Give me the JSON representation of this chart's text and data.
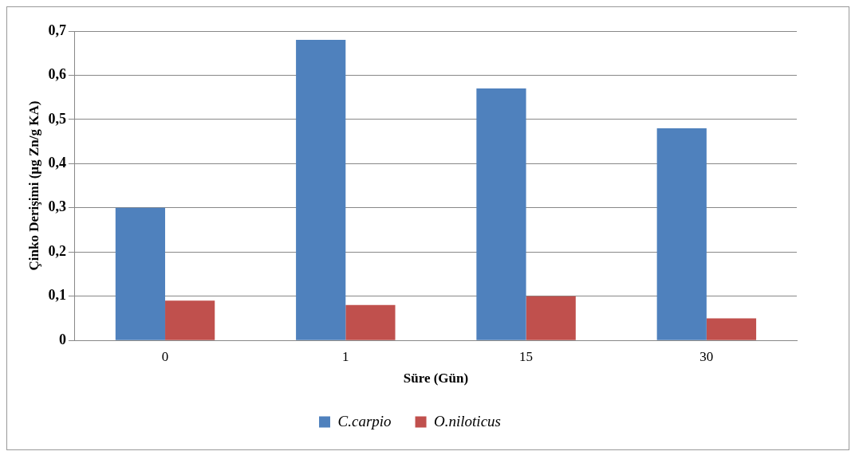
{
  "chart_data": {
    "type": "bar",
    "xlabel": "Süre (Gün)",
    "ylabel": "Çinko Derişimi (µg Zn/g KA)",
    "categories": [
      "0",
      "1",
      "15",
      "30"
    ],
    "series": [
      {
        "name": "C.carpio",
        "color": "#4f81bd",
        "values": [
          0.3,
          0.68,
          0.57,
          0.48
        ]
      },
      {
        "name": "O.niloticus",
        "color": "#c0504d",
        "values": [
          0.09,
          0.08,
          0.1,
          0.05
        ]
      }
    ],
    "ylim": [
      0,
      0.7
    ],
    "yticks": [
      0,
      {
        "value": 0.1,
        "label": "0,1"
      },
      {
        "value": 0.2,
        "label": "0,2"
      },
      {
        "value": 0.3,
        "label": "0,3"
      },
      {
        "value": 0.4,
        "label": "0,4"
      },
      {
        "value": 0.5,
        "label": "0,5"
      },
      {
        "value": 0.6,
        "label": "0,6"
      },
      {
        "value": 0.7,
        "label": "0,7"
      }
    ],
    "grid": "y",
    "legend": "bottom"
  }
}
